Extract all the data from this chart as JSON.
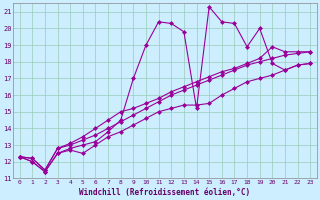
{
  "xlabel": "Windchill (Refroidissement éolien,°C)",
  "bg_color": "#cceeff",
  "line_color": "#990099",
  "grid_color": "#99ccbb",
  "xlim": [
    -0.5,
    23.5
  ],
  "ylim": [
    11.0,
    21.5
  ],
  "yticks": [
    11,
    12,
    13,
    14,
    15,
    16,
    17,
    18,
    19,
    20,
    21
  ],
  "xticks": [
    0,
    1,
    2,
    3,
    4,
    5,
    6,
    7,
    8,
    9,
    10,
    11,
    12,
    13,
    14,
    15,
    16,
    17,
    18,
    19,
    20,
    21,
    22,
    23
  ],
  "line1_x": [
    0,
    1,
    2,
    3,
    4,
    5,
    6,
    7,
    8,
    9,
    10,
    11,
    12,
    13,
    14,
    15,
    16,
    17,
    18,
    19,
    20,
    21,
    22,
    23
  ],
  "line1_y": [
    12.3,
    12.0,
    11.4,
    12.5,
    12.7,
    12.5,
    13.0,
    13.5,
    13.8,
    14.2,
    14.6,
    15.0,
    15.2,
    15.4,
    15.4,
    15.5,
    16.0,
    16.4,
    16.8,
    17.0,
    17.2,
    17.5,
    17.8,
    17.9
  ],
  "line2_x": [
    0,
    1,
    2,
    3,
    4,
    5,
    6,
    7,
    8,
    9,
    10,
    11,
    12,
    13,
    14,
    15,
    16,
    17,
    18,
    19,
    20,
    21,
    22,
    23
  ],
  "line2_y": [
    12.3,
    12.2,
    11.5,
    12.8,
    13.0,
    13.3,
    13.6,
    14.0,
    14.4,
    14.8,
    15.2,
    15.6,
    16.0,
    16.3,
    16.6,
    16.9,
    17.2,
    17.5,
    17.8,
    18.0,
    18.2,
    18.4,
    18.5,
    18.6
  ],
  "line3_x": [
    0,
    1,
    2,
    3,
    4,
    5,
    6,
    7,
    8,
    9,
    10,
    11,
    12,
    13,
    14,
    15,
    16,
    17,
    18,
    19,
    20,
    21,
    22,
    23
  ],
  "line3_y": [
    12.3,
    12.2,
    11.5,
    12.8,
    13.1,
    13.5,
    14.0,
    14.5,
    15.0,
    15.2,
    15.5,
    15.8,
    16.2,
    16.5,
    16.8,
    17.1,
    17.4,
    17.6,
    17.9,
    18.2,
    18.9,
    18.6,
    18.6,
    18.6
  ],
  "line4_x": [
    0,
    1,
    2,
    3,
    4,
    5,
    6,
    7,
    8,
    9,
    10,
    11,
    12,
    13,
    14,
    15,
    16,
    17,
    18,
    19,
    20,
    21,
    22,
    23
  ],
  "line4_y": [
    12.3,
    12.0,
    11.4,
    12.5,
    12.8,
    13.0,
    13.2,
    13.8,
    14.5,
    17.0,
    19.0,
    20.4,
    20.3,
    19.8,
    15.2,
    21.3,
    20.4,
    20.3,
    18.9,
    20.0,
    17.9,
    17.5,
    17.8,
    17.9
  ]
}
